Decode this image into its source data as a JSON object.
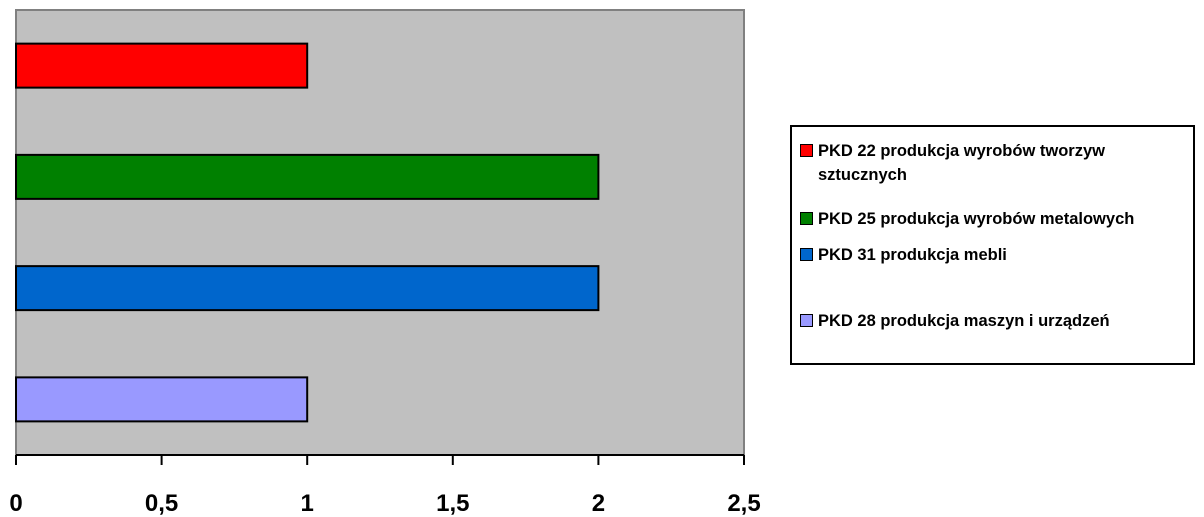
{
  "chart_data": {
    "type": "bar",
    "orientation": "horizontal",
    "title": "",
    "xlabel": "",
    "ylabel": "",
    "xlim": [
      0,
      2.5
    ],
    "ticks": [
      0,
      0.5,
      1,
      1.5,
      2,
      2.5
    ],
    "tick_labels": [
      "0",
      "0,5",
      "1",
      "1,5",
      "2",
      "2,5"
    ],
    "grid": false,
    "legend_position": "right",
    "plot_background": "#C0C0C0",
    "series": [
      {
        "name": "PKD 22 produkcja wyrobów  tworzyw sztucznych",
        "value": 1,
        "color": "#FF0000"
      },
      {
        "name": "PKD 25 produkcja wyrobów metalowych",
        "value": 2,
        "color": "#008000"
      },
      {
        "name": "PKD 31 produkcja mebli",
        "value": 2,
        "color": "#0066CC"
      },
      {
        "name": "PKD 28 produkcja maszyn i urządzeń",
        "value": 1,
        "color": "#9999FF"
      }
    ]
  }
}
